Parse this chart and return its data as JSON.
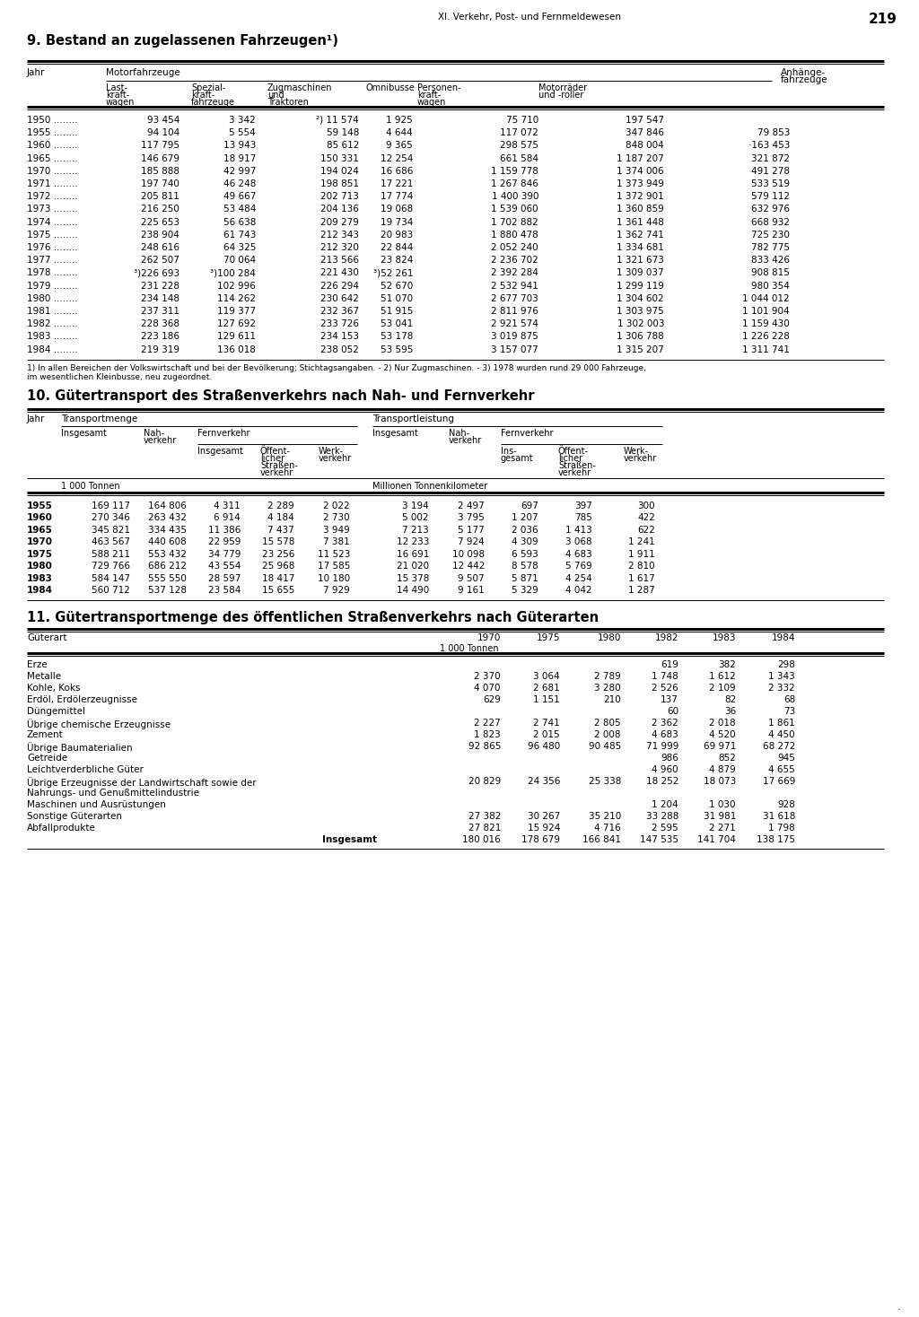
{
  "page_header": "XI. Verkehr, Post- und Fernmeldewesen",
  "page_number": "219",
  "section9_title": "9. Bestand an zugelassenen Fahrzeugen¹)",
  "section10_title": "10. Gütertransport des Straßenverkehrs nach Nah- und Fernverkehr",
  "section11_title": "11. Gütertransportmenge des öffentlichen Straßenverkehrs nach Güterarten",
  "table9_data": [
    [
      "1950",
      "93 454",
      "3 342",
      "²) 11 574",
      "1 925",
      "75 710",
      "197 547",
      ""
    ],
    [
      "1955",
      "94 104",
      "5 554",
      "59 148",
      "4 644",
      "117 072",
      "347 846",
      "79 853"
    ],
    [
      "1960",
      "117 795",
      "13 943",
      "85 612",
      "9 365",
      "298 575",
      "848 004",
      "·163 453"
    ],
    [
      "1965",
      "146 679",
      "18 917",
      "150 331",
      "12 254",
      "661 584",
      "1 187 207",
      "321 872"
    ],
    [
      "1970",
      "185 888",
      "42 997",
      "194 024",
      "16 686",
      "1 159 778",
      "1 374 006",
      "491 278"
    ],
    [
      "1971",
      "197 740",
      "46 248",
      "198 851",
      "17 221",
      "1 267 846",
      "1 373 949",
      "533 519"
    ],
    [
      "1972",
      "205 811",
      "49 667",
      "202 713",
      "17 774",
      "1 400 390",
      "1 372 901",
      "579 112"
    ],
    [
      "1973",
      "216 250",
      "53 484",
      "204 136",
      "19 068",
      "1 539 060",
      "1 360 859",
      "632 976"
    ],
    [
      "1974",
      "225 653",
      "56 638",
      "209 279",
      "19 734",
      "1 702 882",
      "1 361 448",
      "668 932"
    ],
    [
      "1975",
      "238 904",
      "61 743",
      "212 343",
      "20 983",
      "1 880 478",
      "1 362 741",
      "725 230"
    ],
    [
      "1976",
      "248 616",
      "64 325",
      "212 320",
      "22 844",
      "2 052 240",
      "1 334 681",
      "782 775"
    ],
    [
      "1977",
      "262 507",
      "70 064",
      "213 566",
      "23 824",
      "2 236 702",
      "1 321 673",
      "833 426"
    ],
    [
      "1978",
      "³)226 693",
      "³)100 284",
      "221 430",
      "³)52 261",
      "2 392 284",
      "1 309 037",
      "908 815"
    ],
    [
      "1979",
      "231 228",
      "102 996",
      "226 294",
      "52 670",
      "2 532 941",
      "1 299 119",
      "980 354"
    ],
    [
      "1980",
      "234 148",
      "114 262",
      "230 642",
      "51 070",
      "2 677 703",
      "1 304 602",
      "1 044 012"
    ],
    [
      "1981",
      "237 311",
      "119 377",
      "232 367",
      "51 915",
      "2 811 976",
      "1 303 975",
      "1 101 904"
    ],
    [
      "1982",
      "228 368",
      "127 692",
      "233 726",
      "53 041",
      "2 921 574",
      "1 302 003",
      "1 159 430"
    ],
    [
      "1983",
      "223 186",
      "129 611",
      "234 153",
      "53 178",
      "3 019 875",
      "1 306 788",
      "1 226 228"
    ],
    [
      "1984",
      "219 319",
      "136 018",
      "238 052",
      "53 595",
      "3 157 077",
      "1 315 207",
      "1 311 741"
    ]
  ],
  "table9_footnote_line1": "1) In allen Bereichen der Volkswirtschaft und bei der Bevölkerung; Stichtagsangaben. - 2) Nur Zugmaschinen. - 3) 1978 wurden rund 29 000 Fahrzeuge,",
  "table9_footnote_line2": "im wesentlichen Kleinbusse, neu zugeordnet.",
  "table10_data": [
    [
      "1955",
      "169 117",
      "164 806",
      "4 311",
      "2 289",
      "2 022",
      "3 194",
      "2 497",
      "697",
      "397",
      "300"
    ],
    [
      "1960",
      "270 346",
      "263 432",
      "6 914",
      "4 184",
      "2 730",
      "5 002",
      "3 795",
      "1 207",
      "785",
      "422"
    ],
    [
      "1965",
      "345 821",
      "334 435",
      "11 386",
      "7 437",
      "3 949",
      "7 213",
      "5 177",
      "2 036",
      "1 413",
      "622"
    ],
    [
      "1970",
      "463 567",
      "440 608",
      "22 959",
      "15 578",
      "7 381",
      "12 233",
      "7 924",
      "4 309",
      "3 068",
      "1 241"
    ],
    [
      "1975",
      "588 211",
      "553 432",
      "34 779",
      "23 256",
      "11 523",
      "16 691",
      "10 098",
      "6 593",
      "4 683",
      "1 911"
    ],
    [
      "1980",
      "729 766",
      "686 212",
      "43 554",
      "25 968",
      "17 585",
      "21 020",
      "12 442",
      "8 578",
      "5 769",
      "2 810"
    ],
    [
      "1983",
      "584 147",
      "555 550",
      "28 597",
      "18 417",
      "10 180",
      "15 378",
      "9 507",
      "5 871",
      "4 254",
      "1 617"
    ],
    [
      "1984",
      "560 712",
      "537 128",
      "23 584",
      "15 655",
      "7 929",
      "14 490",
      "9 161",
      "5 329",
      "4 042",
      "1 287"
    ]
  ],
  "table11_data": [
    [
      "Erze",
      "",
      "",
      "",
      "619",
      "382",
      "298"
    ],
    [
      "Metalle",
      "2 370",
      "3 064",
      "2 789",
      "1 748",
      "1 612",
      "1 343"
    ],
    [
      "Kohle, Koks",
      "4 070",
      "2 681",
      "3 280",
      "2 526",
      "2 109",
      "2 332"
    ],
    [
      "Erdöl, Erdölerzeugnisse",
      "629",
      "1 151",
      "210",
      "137",
      "82",
      "68"
    ],
    [
      "Düngemittel",
      "",
      "",
      "",
      "60",
      "36",
      "73"
    ],
    [
      "Übrige chemische Erzeugnisse",
      "2 227",
      "2 741",
      "2 805",
      "2 362",
      "2 018",
      "1 861"
    ],
    [
      "Zement",
      "1 823",
      "2 015",
      "2 008",
      "4 683",
      "4 520",
      "4 450"
    ],
    [
      "Übrige Baumaterialien",
      "92 865",
      "96 480",
      "90 485",
      "71 999",
      "69 971",
      "68 272"
    ],
    [
      "Getreide",
      "",
      "",
      "",
      "986",
      "852",
      "945"
    ],
    [
      "Leichtverderbliche Güter",
      "",
      "",
      "",
      "4 960",
      "4 879",
      "4 655"
    ],
    [
      "Übrige Erzeugnisse der Landwirtschaft sowie der",
      "20 829",
      "24 356",
      "25 338",
      "18 252",
      "18 073",
      "17 669"
    ],
    [
      "Nahrungs- und Genußmittelindustrie",
      "",
      "",
      "",
      "",
      "",
      ""
    ],
    [
      "Maschinen und Ausrüstungen",
      "",
      "",
      "",
      "1 204",
      "1 030",
      "928"
    ],
    [
      "Sonstige Güterarten",
      "27 382",
      "30 267",
      "35 210",
      "33 288",
      "31 981",
      "31 618"
    ],
    [
      "Abfallprodukte",
      "27 821",
      "15 924",
      "4 716",
      "2 595",
      "2 271",
      "1 798"
    ],
    [
      "Insgesamt",
      "180 016",
      "178 679",
      "166 841",
      "147 535",
      "141 704",
      "138 175"
    ]
  ]
}
